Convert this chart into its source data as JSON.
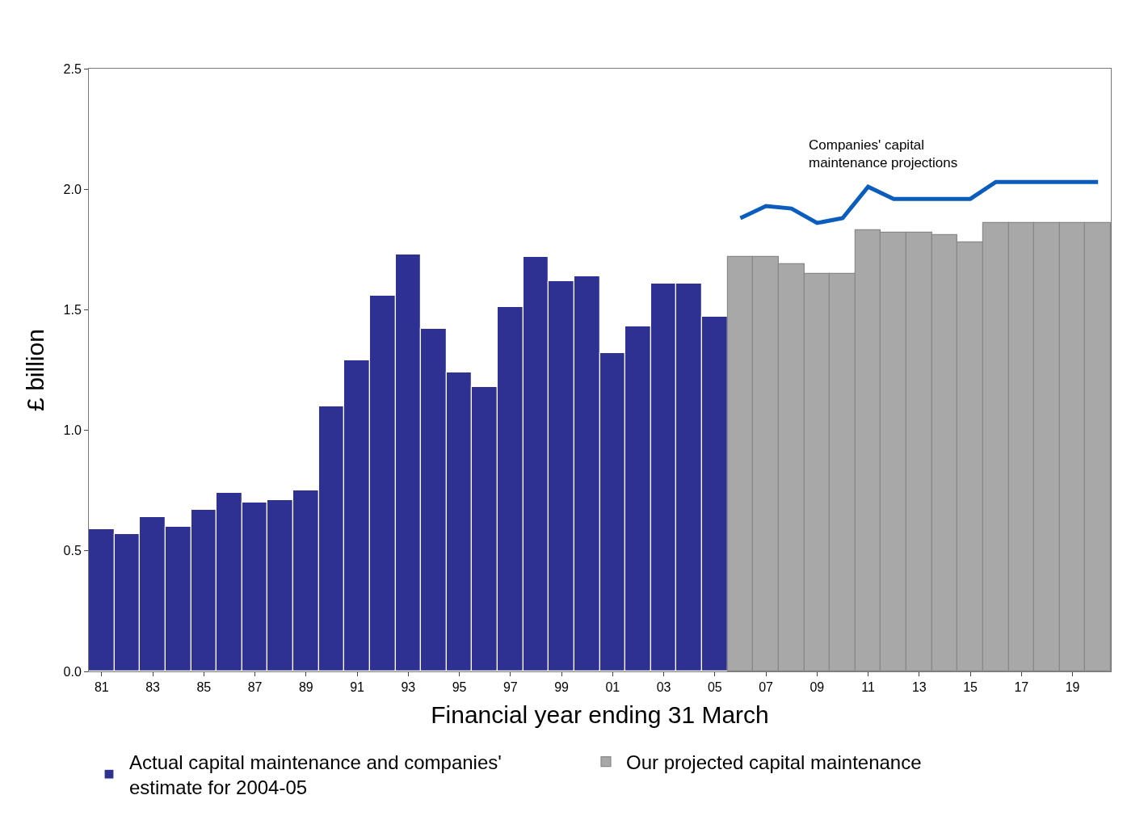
{
  "chart_data": {
    "type": "bar",
    "xlabel": "Financial year ending 31 March",
    "ylabel": "£ billion",
    "categories": [
      "81",
      null,
      "83",
      null,
      "85",
      null,
      "87",
      null,
      "89",
      null,
      "91",
      null,
      "93",
      null,
      "95",
      null,
      "97",
      null,
      "99",
      null,
      "01",
      null,
      "03",
      null,
      "05",
      null,
      "07",
      null,
      "09",
      null,
      "11",
      null,
      "13",
      null,
      "15",
      null,
      "17",
      null,
      "19",
      null
    ],
    "series": [
      {
        "name": "Actual capital maintenance and companies'\nestimate for 2004-05",
        "color": "#2e3192",
        "values": [
          0.59,
          0.57,
          0.64,
          0.6,
          0.67,
          0.74,
          0.7,
          0.71,
          0.75,
          1.1,
          1.29,
          1.56,
          1.73,
          1.42,
          1.24,
          1.18,
          1.51,
          1.72,
          1.62,
          1.64,
          1.32,
          1.43,
          1.61,
          1.61,
          1.47,
          null,
          null,
          null,
          null,
          null,
          null,
          null,
          null,
          null,
          null,
          null,
          null,
          null,
          null,
          null
        ]
      },
      {
        "name": "Our projected capital maintenance",
        "color": "#a8a8a8",
        "values": [
          null,
          null,
          null,
          null,
          null,
          null,
          null,
          null,
          null,
          null,
          null,
          null,
          null,
          null,
          null,
          null,
          null,
          null,
          null,
          null,
          null,
          null,
          null,
          null,
          null,
          1.72,
          1.72,
          1.69,
          1.65,
          1.65,
          1.83,
          1.82,
          1.82,
          1.81,
          1.78,
          1.86,
          1.86,
          1.86,
          1.86,
          1.86
        ]
      },
      {
        "name": "Companies' capital\nmaintenance projections",
        "type": "line",
        "color": "#0a5cbd",
        "values": [
          null,
          null,
          null,
          null,
          null,
          null,
          null,
          null,
          null,
          null,
          null,
          null,
          null,
          null,
          null,
          null,
          null,
          null,
          null,
          null,
          null,
          null,
          null,
          null,
          null,
          1.88,
          1.93,
          1.92,
          1.86,
          1.88,
          2.01,
          1.96,
          1.96,
          1.96,
          1.96,
          2.03,
          2.03,
          2.03,
          2.03,
          2.03
        ]
      }
    ],
    "ylim": [
      0,
      2.5
    ],
    "yticks": [
      {
        "value": 0,
        "label": "0.0"
      },
      0.5,
      {
        "value": 1,
        "label": "1.0"
      },
      1.5,
      {
        "value": 2,
        "label": "2.0"
      },
      2.5
    ],
    "legend": "bottom",
    "marker": "none",
    "line_style": "solid"
  }
}
